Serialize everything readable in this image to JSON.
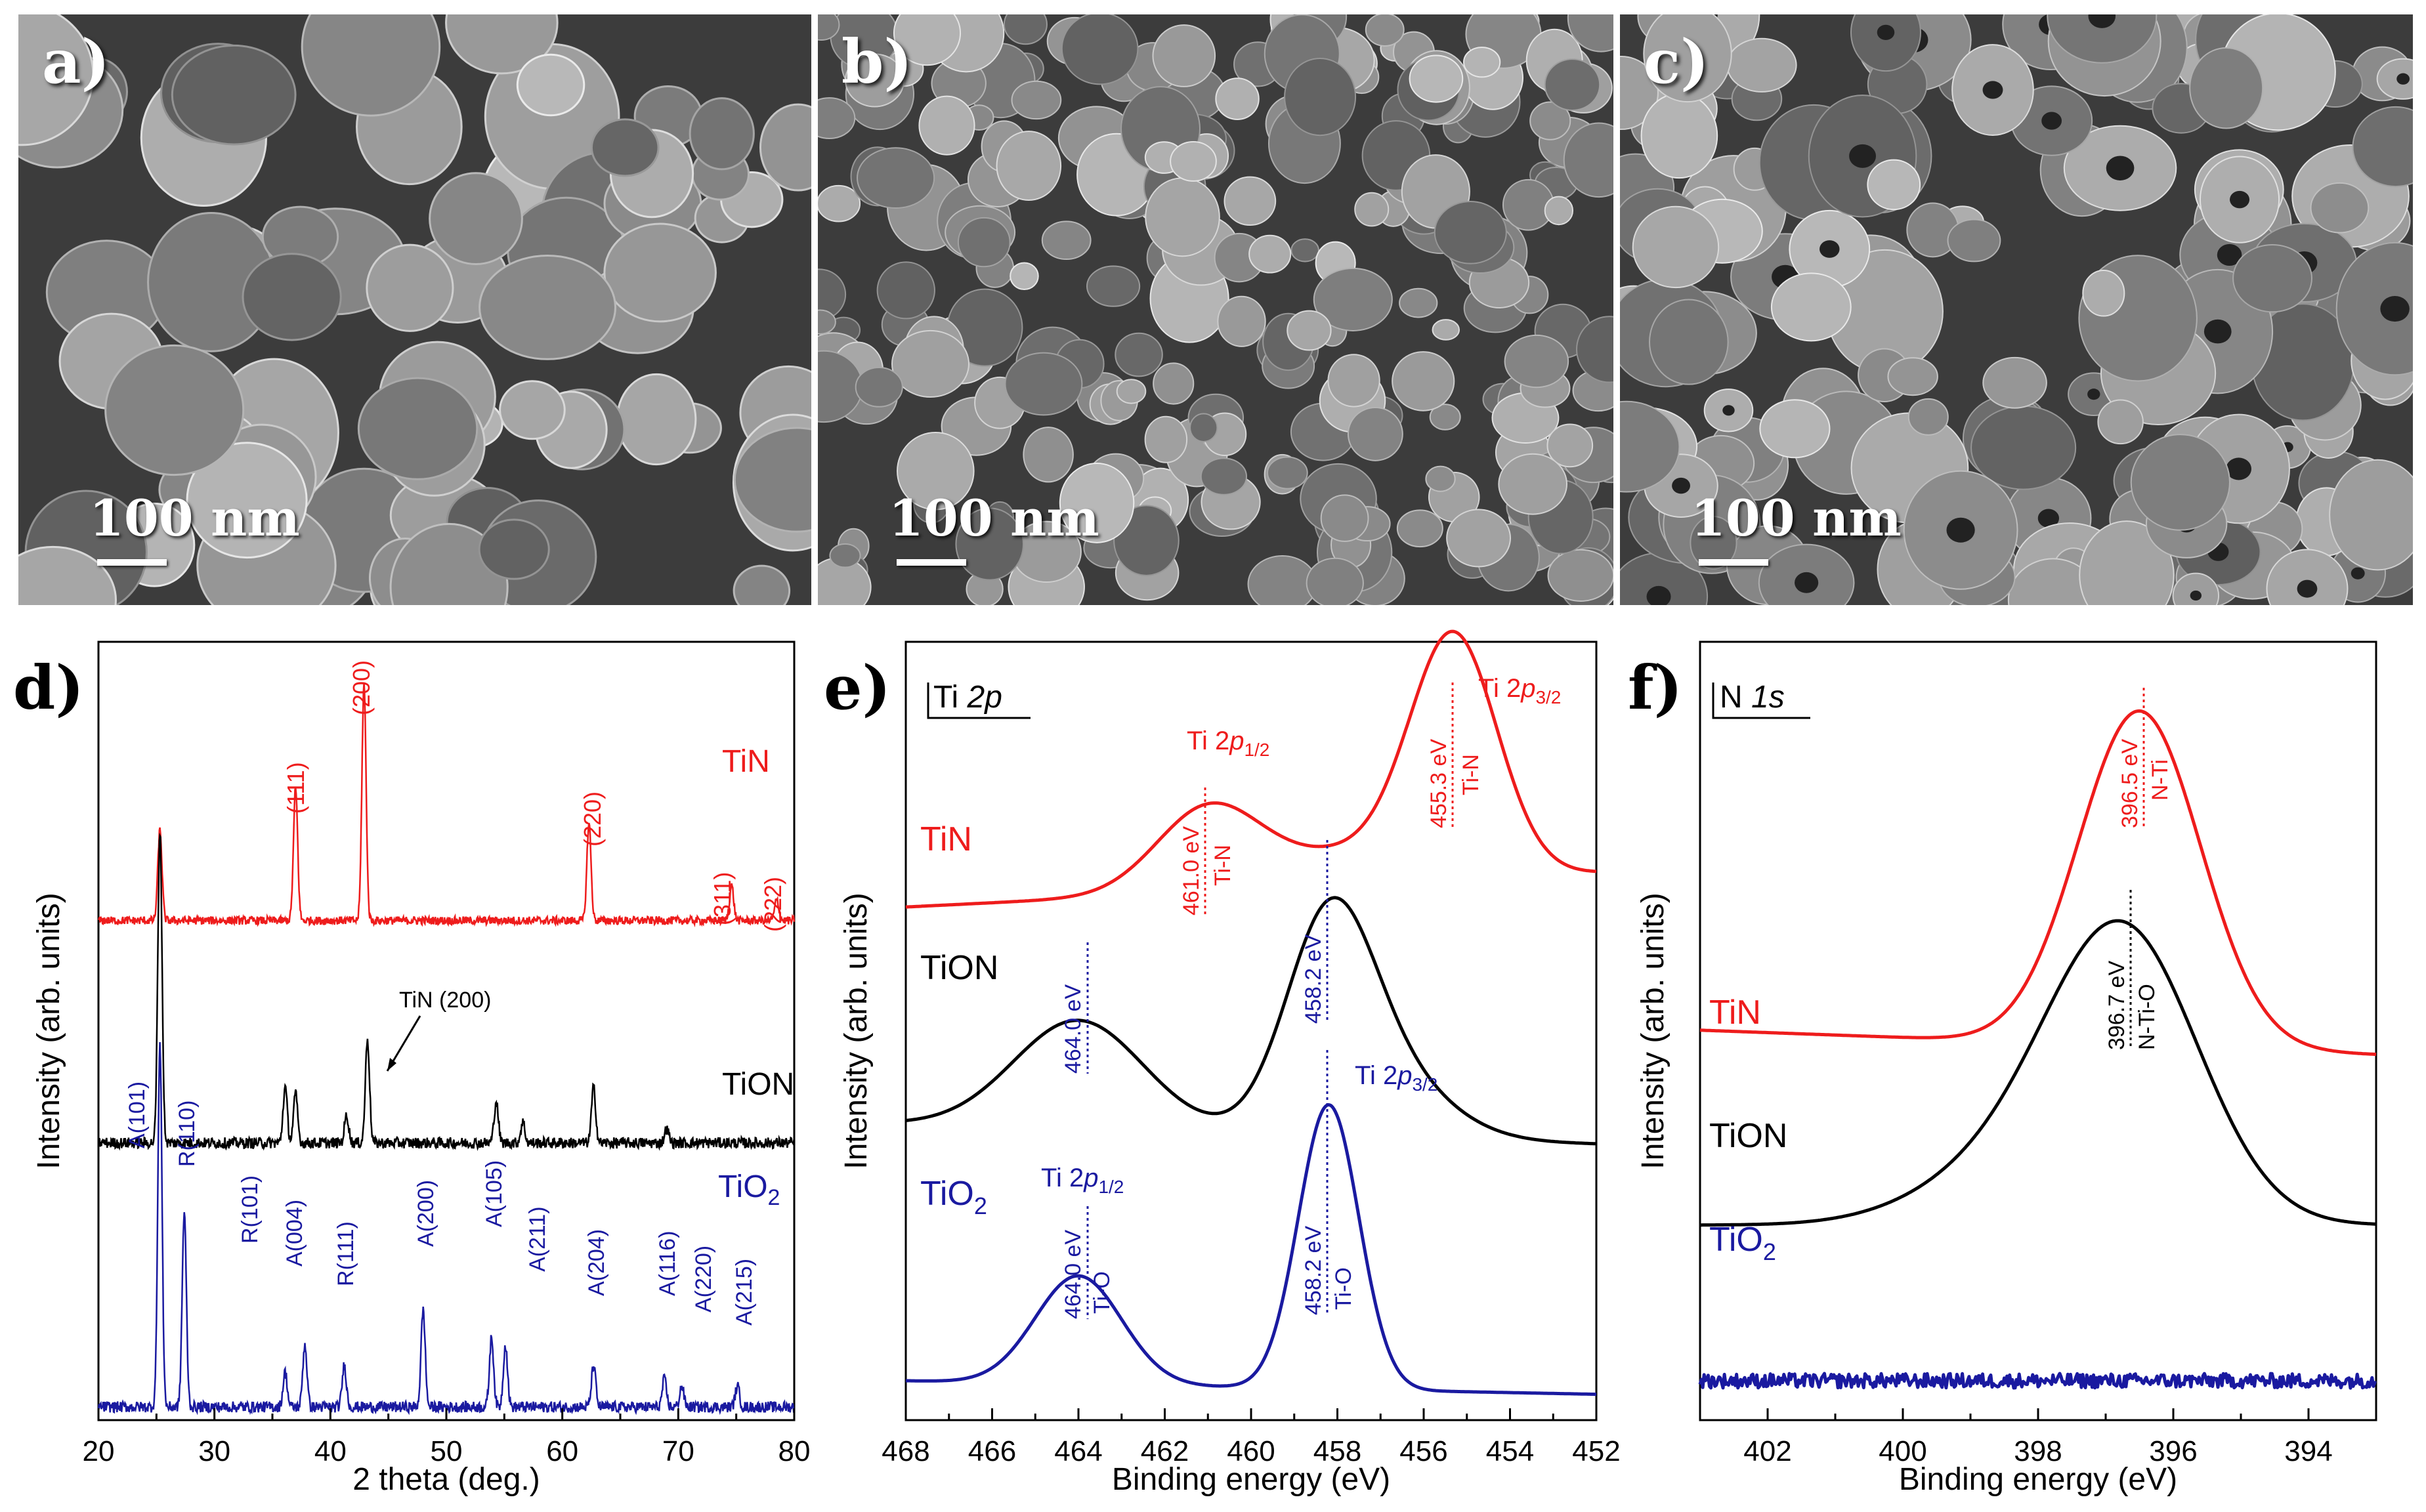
{
  "sem_panels": [
    {
      "label": "a)",
      "scale_text": "100 nm"
    },
    {
      "label": "b)",
      "scale_text": "100 nm"
    },
    {
      "label": "c)",
      "scale_text": "100 nm"
    }
  ],
  "colors": {
    "TiN": "#ee1c1c",
    "TiON": "#000000",
    "TiO2": "#1a1aa0"
  },
  "chart_data": [
    {
      "type": "line",
      "panel": "d)",
      "title": "",
      "xlabel": "2 theta (deg.)",
      "ylabel": "Intensity (arb. units)",
      "xlim": [
        20,
        80
      ],
      "xticks": [
        "20",
        "30",
        "40",
        "50",
        "60",
        "70",
        "80"
      ],
      "series": [
        {
          "name": "TiN",
          "label_text": "TiN",
          "color": "#ee1c1c",
          "offset": 0.7,
          "noise": 0.006,
          "peaks": [
            [
              25.3,
              0.13
            ],
            [
              37.0,
              0.19
            ],
            [
              42.9,
              0.34
            ],
            [
              62.3,
              0.14
            ],
            [
              74.6,
              0.05
            ],
            [
              78.5,
              0.03
            ]
          ],
          "annotations": [
            "(111)",
            "(200)",
            "(220)",
            "(311)",
            "(222)"
          ]
        },
        {
          "name": "TiON",
          "label_text": "TiON",
          "color": "#000000",
          "offset": 0.38,
          "noise": 0.008,
          "peaks": [
            [
              25.3,
              0.45
            ],
            [
              36.1,
              0.08
            ],
            [
              37.0,
              0.07
            ],
            [
              41.4,
              0.04
            ],
            [
              43.2,
              0.15
            ],
            [
              54.3,
              0.06
            ],
            [
              56.6,
              0.03
            ],
            [
              62.7,
              0.08
            ],
            [
              69.0,
              0.02
            ]
          ],
          "annotations": [
            "TiN (200)"
          ]
        },
        {
          "name": "TiO2",
          "label_text": "TiO",
          "label_sub": "2",
          "color": "#1a1aa0",
          "offset": 0.0,
          "noise": 0.008,
          "peaks": [
            [
              25.3,
              0.52
            ],
            [
              27.4,
              0.28
            ],
            [
              36.1,
              0.05
            ],
            [
              37.8,
              0.09
            ],
            [
              41.2,
              0.06
            ],
            [
              48.0,
              0.14
            ],
            [
              53.9,
              0.1
            ],
            [
              55.1,
              0.09
            ],
            [
              62.7,
              0.06
            ],
            [
              68.8,
              0.04
            ],
            [
              70.3,
              0.03
            ],
            [
              75.1,
              0.03
            ]
          ],
          "annotations": [
            "A(101)",
            "R(110)",
            "R(101)",
            "A(004)",
            "R(111)",
            "A(200)",
            "A(105)",
            "A(211)",
            "A(204)",
            "A(116)",
            "A(220)",
            "A(215)"
          ]
        }
      ]
    },
    {
      "type": "line",
      "panel": "e)",
      "title": "Ti 2p",
      "title_main": "Ti ",
      "title_italic": "2p",
      "xlabel": "Binding energy (eV)",
      "ylabel": "Intensity (arb. units)",
      "xlim": [
        468,
        452
      ],
      "xticks": [
        "468",
        "466",
        "464",
        "462",
        "460",
        "458",
        "456",
        "454",
        "452"
      ],
      "series": [
        {
          "name": "TiN",
          "label_text": "TiN",
          "color": "#ee1c1c",
          "offset": 0.7,
          "peaks": [
            [
              461.0,
              0.12,
              1.2
            ],
            [
              455.3,
              0.34,
              1.0
            ],
            [
              457.5,
              0.05,
              2.0
            ]
          ],
          "baseline": [
            0.0,
            0.05
          ]
        },
        {
          "name": "TiON",
          "label_text": "TiON",
          "color": "#000000",
          "offset": 0.38,
          "peaks": [
            [
              464.0,
              0.16,
              1.5
            ],
            [
              458.2,
              0.28,
              1.0
            ],
            [
              457.0,
              0.1,
              1.4
            ]
          ],
          "baseline": [
            0.0,
            -0.03
          ]
        },
        {
          "name": "TiO2",
          "label_text": "TiO",
          "label_sub": "2",
          "color": "#1a1aa0",
          "offset": 0.0,
          "peaks": [
            [
              464.0,
              0.16,
              1.0
            ],
            [
              458.2,
              0.42,
              0.7
            ]
          ],
          "baseline": [
            0.0,
            -0.02
          ]
        }
      ],
      "annotations": {
        "tin_p12": {
          "main": "Ti 2",
          "ital": "p",
          "sub": "1/2",
          "energy": "461.0 eV",
          "bond": "Ti-N"
        },
        "tin_p32": {
          "main": "Ti 2",
          "ital": "p",
          "sub": "3/2",
          "energy": "455.3 eV",
          "bond": "Ti-N"
        },
        "tion_left": {
          "energy": "464.0 eV"
        },
        "tion_right": {
          "energy": "458.2 eV"
        },
        "tio2_p12": {
          "main": "Ti 2",
          "ital": "p",
          "sub": "1/2",
          "energy": "464.0 eV",
          "bond": "Ti-O"
        },
        "tio2_p32": {
          "main": "Ti 2",
          "ital": "p",
          "sub": "3/2",
          "energy": "458.2 eV",
          "bond": "Ti-O"
        }
      }
    },
    {
      "type": "line",
      "panel": "f)",
      "title": "N 1s",
      "title_main": "N ",
      "title_italic": "1s",
      "xlabel": "Binding energy (eV)",
      "ylabel": "Intensity (arb. units)",
      "xlim": [
        403,
        393
      ],
      "xticks": [
        "402",
        "400",
        "398",
        "396",
        "394"
      ],
      "series": [
        {
          "name": "TiN",
          "label_text": "TiN",
          "color": "#ee1c1c",
          "offset": 0.5,
          "peaks": [
            [
              396.5,
              0.55,
              0.9
            ]
          ],
          "baseline": [
            0.02,
            -0.02
          ]
        },
        {
          "name": "TiON",
          "label_text": "TiON",
          "color": "#000000",
          "offset": 0.23,
          "peaks": [
            [
              396.7,
              0.45,
              1.1
            ],
            [
              398.3,
              0.1,
              1.3
            ]
          ],
          "baseline": [
            0.0,
            0.0
          ]
        },
        {
          "name": "TiO2",
          "label_text": "TiO",
          "label_sub": "2",
          "color": "#1a1aa0",
          "offset": 0.0,
          "peaks": [],
          "baseline": [
            0.0,
            0.0
          ],
          "noise": 0.012
        }
      ],
      "annotations": {
        "tin": {
          "energy": "396.5 eV",
          "bond": "N-Ti"
        },
        "tion": {
          "energy": "396.7 eV",
          "bond": "N-Ti-O"
        }
      }
    }
  ]
}
